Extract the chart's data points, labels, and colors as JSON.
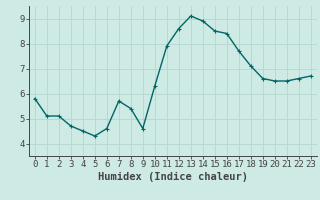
{
  "x": [
    0,
    1,
    2,
    3,
    4,
    5,
    6,
    7,
    8,
    9,
    10,
    11,
    12,
    13,
    14,
    15,
    16,
    17,
    18,
    19,
    20,
    21,
    22,
    23
  ],
  "y": [
    5.8,
    5.1,
    5.1,
    4.7,
    4.5,
    4.3,
    4.6,
    5.7,
    5.4,
    4.6,
    6.3,
    7.9,
    8.6,
    9.1,
    8.9,
    8.5,
    8.4,
    7.7,
    7.1,
    6.6,
    6.5,
    6.5,
    6.6,
    6.7
  ],
  "line_color": "#006666",
  "marker": "+",
  "marker_size": 3,
  "linewidth": 1.0,
  "bg_color": "#cdeae4",
  "grid_color": "#b5d5ce",
  "axis_color": "#444444",
  "xlabel": "Humidex (Indice chaleur)",
  "xlabel_fontsize": 7.5,
  "xlim": [
    -0.5,
    23.5
  ],
  "ylim": [
    3.5,
    9.5
  ],
  "yticks": [
    4,
    5,
    6,
    7,
    8,
    9
  ],
  "xticks": [
    0,
    1,
    2,
    3,
    4,
    5,
    6,
    7,
    8,
    9,
    10,
    11,
    12,
    13,
    14,
    15,
    16,
    17,
    18,
    19,
    20,
    21,
    22,
    23
  ],
  "tick_fontsize": 6.5
}
